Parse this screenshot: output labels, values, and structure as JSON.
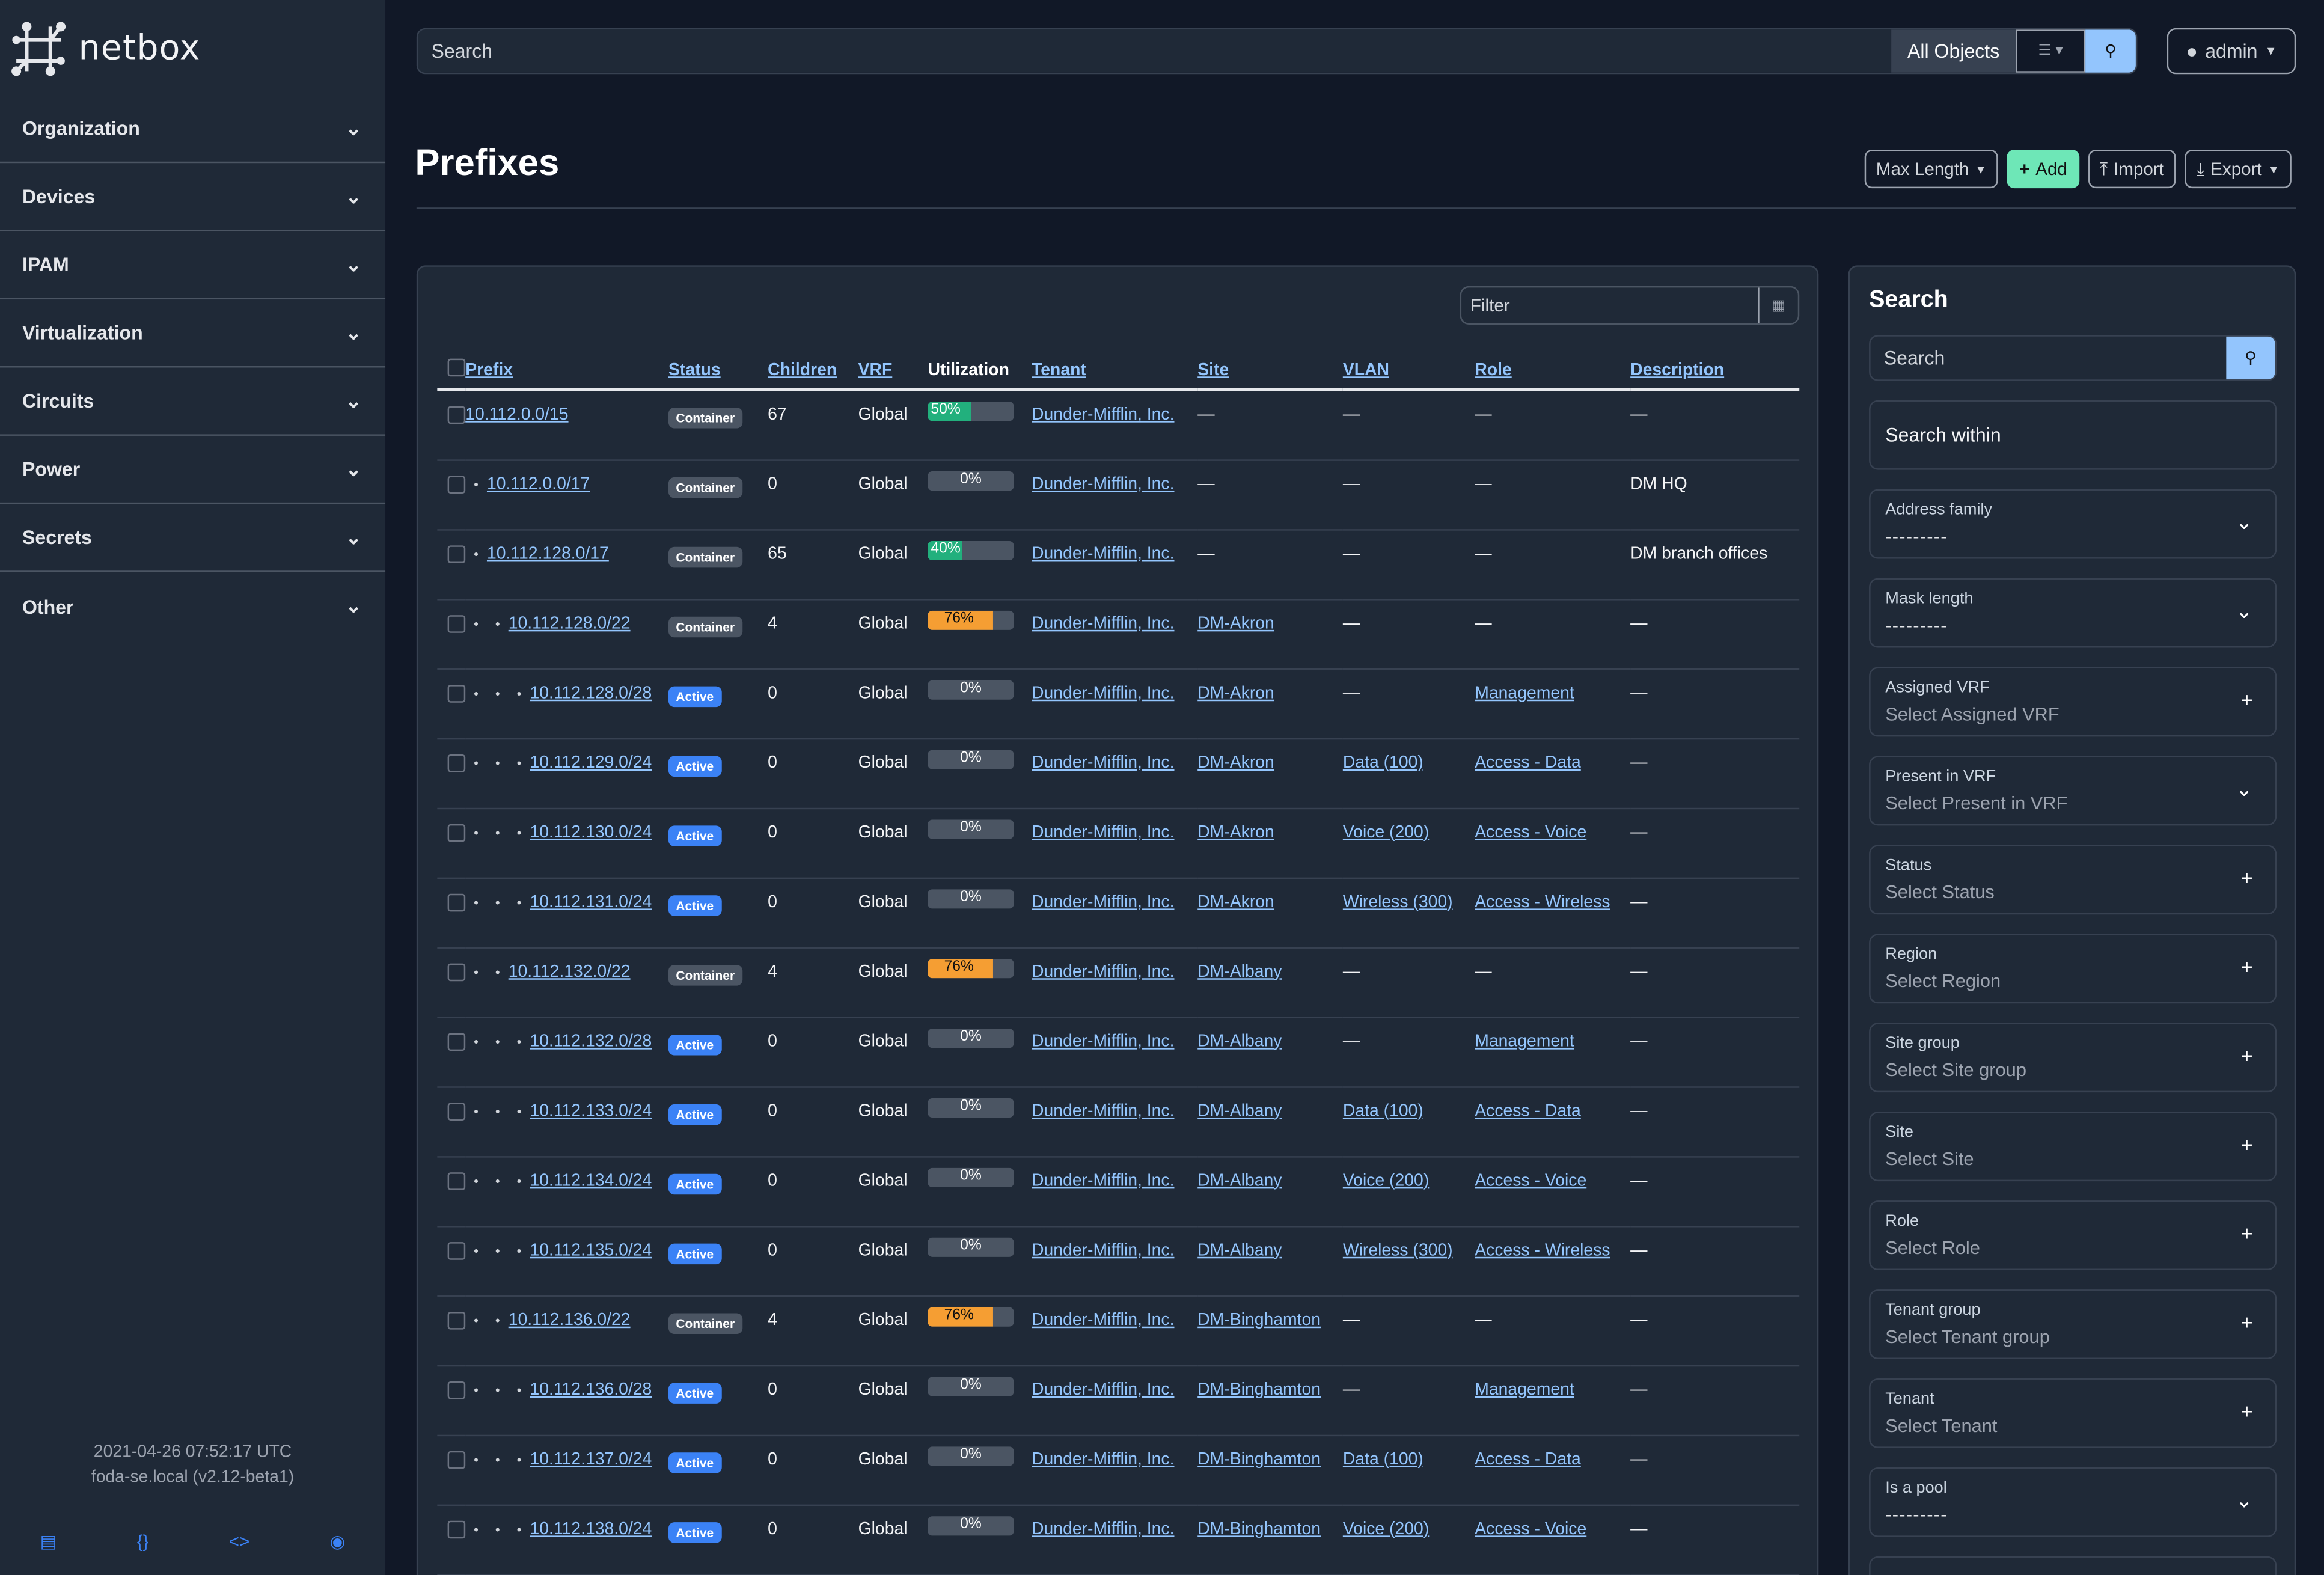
{
  "brand": {
    "name": "netbox"
  },
  "sidebar": {
    "items": [
      {
        "label": "Organization"
      },
      {
        "label": "Devices"
      },
      {
        "label": "IPAM"
      },
      {
        "label": "Virtualization"
      },
      {
        "label": "Circuits"
      },
      {
        "label": "Power"
      },
      {
        "label": "Secrets"
      },
      {
        "label": "Other"
      }
    ],
    "timestamp": "2021-04-26 07:52:17 UTC",
    "host": "foda-se.local (v2.12-beta1)",
    "footer_icons": [
      "book-icon",
      "braces-icon",
      "code-icon",
      "lifebuoy-icon"
    ]
  },
  "topbar": {
    "search_placeholder": "Search",
    "scope": "All Objects",
    "user": "admin"
  },
  "page": {
    "title": "Prefixes",
    "buttons": {
      "max_length": "Max Length",
      "add": "Add",
      "import": "Import",
      "export": "Export"
    }
  },
  "table": {
    "filter_placeholder": "Filter",
    "columns": [
      "Prefix",
      "Status",
      "Children",
      "VRF",
      "Utilization",
      "Tenant",
      "Site",
      "VLAN",
      "Role",
      "Description"
    ],
    "rows": [
      {
        "depth": 0,
        "prefix": "10.112.0.0/15",
        "status": "Container",
        "children": "67",
        "vrf": "Global",
        "utilization": 50,
        "tenant": "Dunder-Mifflin, Inc.",
        "site": "—",
        "vlan": "—",
        "role": "—",
        "description": "—"
      },
      {
        "depth": 1,
        "prefix": "10.112.0.0/17",
        "status": "Container",
        "children": "0",
        "vrf": "Global",
        "utilization": 0,
        "tenant": "Dunder-Mifflin, Inc.",
        "site": "—",
        "vlan": "—",
        "role": "—",
        "description": "DM HQ"
      },
      {
        "depth": 1,
        "prefix": "10.112.128.0/17",
        "status": "Container",
        "children": "65",
        "vrf": "Global",
        "utilization": 40,
        "tenant": "Dunder-Mifflin, Inc.",
        "site": "—",
        "vlan": "—",
        "role": "—",
        "description": "DM branch offices"
      },
      {
        "depth": 2,
        "prefix": "10.112.128.0/22",
        "status": "Container",
        "children": "4",
        "vrf": "Global",
        "utilization": 76,
        "tenant": "Dunder-Mifflin, Inc.",
        "site": "DM-Akron",
        "vlan": "—",
        "role": "—",
        "description": "—"
      },
      {
        "depth": 3,
        "prefix": "10.112.128.0/28",
        "status": "Active",
        "children": "0",
        "vrf": "Global",
        "utilization": 0,
        "tenant": "Dunder-Mifflin, Inc.",
        "site": "DM-Akron",
        "vlan": "—",
        "role": "Management",
        "description": "—"
      },
      {
        "depth": 3,
        "prefix": "10.112.129.0/24",
        "status": "Active",
        "children": "0",
        "vrf": "Global",
        "utilization": 0,
        "tenant": "Dunder-Mifflin, Inc.",
        "site": "DM-Akron",
        "vlan": "Data (100)",
        "role": "Access - Data",
        "description": "—"
      },
      {
        "depth": 3,
        "prefix": "10.112.130.0/24",
        "status": "Active",
        "children": "0",
        "vrf": "Global",
        "utilization": 0,
        "tenant": "Dunder-Mifflin, Inc.",
        "site": "DM-Akron",
        "vlan": "Voice (200)",
        "role": "Access - Voice",
        "description": "—"
      },
      {
        "depth": 3,
        "prefix": "10.112.131.0/24",
        "status": "Active",
        "children": "0",
        "vrf": "Global",
        "utilization": 0,
        "tenant": "Dunder-Mifflin, Inc.",
        "site": "DM-Akron",
        "vlan": "Wireless (300)",
        "role": "Access - Wireless",
        "description": "—"
      },
      {
        "depth": 2,
        "prefix": "10.112.132.0/22",
        "status": "Container",
        "children": "4",
        "vrf": "Global",
        "utilization": 76,
        "tenant": "Dunder-Mifflin, Inc.",
        "site": "DM-Albany",
        "vlan": "—",
        "role": "—",
        "description": "—"
      },
      {
        "depth": 3,
        "prefix": "10.112.132.0/28",
        "status": "Active",
        "children": "0",
        "vrf": "Global",
        "utilization": 0,
        "tenant": "Dunder-Mifflin, Inc.",
        "site": "DM-Albany",
        "vlan": "—",
        "role": "Management",
        "description": "—"
      },
      {
        "depth": 3,
        "prefix": "10.112.133.0/24",
        "status": "Active",
        "children": "0",
        "vrf": "Global",
        "utilization": 0,
        "tenant": "Dunder-Mifflin, Inc.",
        "site": "DM-Albany",
        "vlan": "Data (100)",
        "role": "Access - Data",
        "description": "—"
      },
      {
        "depth": 3,
        "prefix": "10.112.134.0/24",
        "status": "Active",
        "children": "0",
        "vrf": "Global",
        "utilization": 0,
        "tenant": "Dunder-Mifflin, Inc.",
        "site": "DM-Albany",
        "vlan": "Voice (200)",
        "role": "Access - Voice",
        "description": "—"
      },
      {
        "depth": 3,
        "prefix": "10.112.135.0/24",
        "status": "Active",
        "children": "0",
        "vrf": "Global",
        "utilization": 0,
        "tenant": "Dunder-Mifflin, Inc.",
        "site": "DM-Albany",
        "vlan": "Wireless (300)",
        "role": "Access - Wireless",
        "description": "—"
      },
      {
        "depth": 2,
        "prefix": "10.112.136.0/22",
        "status": "Container",
        "children": "4",
        "vrf": "Global",
        "utilization": 76,
        "tenant": "Dunder-Mifflin, Inc.",
        "site": "DM-Binghamton",
        "vlan": "—",
        "role": "—",
        "description": "—"
      },
      {
        "depth": 3,
        "prefix": "10.112.136.0/28",
        "status": "Active",
        "children": "0",
        "vrf": "Global",
        "utilization": 0,
        "tenant": "Dunder-Mifflin, Inc.",
        "site": "DM-Binghamton",
        "vlan": "—",
        "role": "Management",
        "description": "—"
      },
      {
        "depth": 3,
        "prefix": "10.112.137.0/24",
        "status": "Active",
        "children": "0",
        "vrf": "Global",
        "utilization": 0,
        "tenant": "Dunder-Mifflin, Inc.",
        "site": "DM-Binghamton",
        "vlan": "Data (100)",
        "role": "Access - Data",
        "description": "—"
      },
      {
        "depth": 3,
        "prefix": "10.112.138.0/24",
        "status": "Active",
        "children": "0",
        "vrf": "Global",
        "utilization": 0,
        "tenant": "Dunder-Mifflin, Inc.",
        "site": "DM-Binghamton",
        "vlan": "Voice (200)",
        "role": "Access - Voice",
        "description": "—"
      }
    ]
  },
  "search_panel": {
    "title": "Search",
    "search_placeholder": "Search",
    "search_within": "Search within",
    "fields": [
      {
        "label": "Address family",
        "value": "---------",
        "control": "chevron"
      },
      {
        "label": "Mask length",
        "value": "---------",
        "control": "chevron"
      },
      {
        "label": "Assigned VRF",
        "value": "Select Assigned VRF",
        "control": "plus"
      },
      {
        "label": "Present in VRF",
        "value": "Select Present in VRF",
        "control": "chevron"
      },
      {
        "label": "Status",
        "value": "Select Status",
        "control": "plus"
      },
      {
        "label": "Region",
        "value": "Select Region",
        "control": "plus"
      },
      {
        "label": "Site group",
        "value": "Select Site group",
        "control": "plus"
      },
      {
        "label": "Site",
        "value": "Select Site",
        "control": "plus"
      },
      {
        "label": "Role",
        "value": "Select Role",
        "control": "plus"
      },
      {
        "label": "Tenant group",
        "value": "Select Tenant group",
        "control": "plus"
      },
      {
        "label": "Tenant",
        "value": "Select Tenant",
        "control": "plus"
      },
      {
        "label": "Is a pool",
        "value": "---------",
        "control": "chevron"
      }
    ]
  },
  "colors": {
    "sidebar_bg": "#1f2937",
    "page_bg": "#111827",
    "link": "#93c5fd",
    "active": "#3b82f6",
    "container": "#4b5563",
    "util_low": "#22b07d",
    "util_high": "#f59e33",
    "add": "#6ee7b7"
  }
}
